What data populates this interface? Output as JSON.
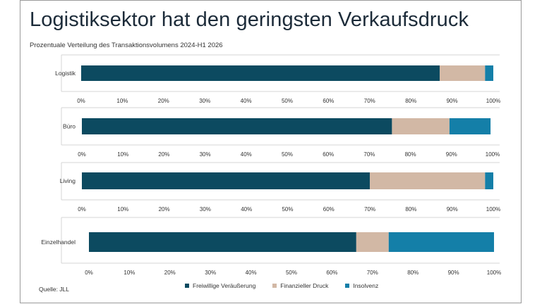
{
  "title": "Logistiksektor hat den geringsten Verkaufsdruck",
  "subtitle": "Prozentuale Verteilung des Transaktionsvolumens 2024-H1 2026",
  "source": "Quelle: JLL",
  "colors": {
    "Freiwillige Veräußerung": "#0c4a60",
    "Finanzieller Druck": "#d2b8a5",
    "Insolvenz": "#147fa8"
  },
  "legend": [
    "Freiwillige Veräußerung",
    "Finanzieller Druck",
    "Insolvenz"
  ],
  "chart_data": [
    {
      "type": "bar",
      "orientation": "horizontal",
      "stacked": true,
      "categories": [
        "Logistik"
      ],
      "series": [
        {
          "name": "Freiwillige Veräußerung",
          "values": [
            87
          ]
        },
        {
          "name": "Finanzieller Druck",
          "values": [
            11
          ]
        },
        {
          "name": "Insolvenz",
          "values": [
            2
          ]
        }
      ],
      "xlim": [
        0,
        100
      ],
      "ticks": [
        "0%",
        "10%",
        "20%",
        "30%",
        "40%",
        "50%",
        "60%",
        "70%",
        "80%",
        "90%",
        "100%"
      ]
    },
    {
      "type": "bar",
      "orientation": "horizontal",
      "stacked": true,
      "categories": [
        "Büro"
      ],
      "series": [
        {
          "name": "Freiwillige Veräußerung",
          "values": [
            75.5
          ]
        },
        {
          "name": "Finanzieller Druck",
          "values": [
            14
          ]
        },
        {
          "name": "Insolvenz",
          "values": [
            10
          ]
        }
      ],
      "xlim": [
        0,
        100
      ],
      "ticks": [
        "0%",
        "10%",
        "20%",
        "30%",
        "40%",
        "50%",
        "60%",
        "70%",
        "80%",
        "90%",
        "100%"
      ]
    },
    {
      "type": "bar",
      "orientation": "horizontal",
      "stacked": true,
      "categories": [
        "Living"
      ],
      "series": [
        {
          "name": "Freiwillige Veräußerung",
          "values": [
            70
          ]
        },
        {
          "name": "Finanzieller Druck",
          "values": [
            28
          ]
        },
        {
          "name": "Insolvenz",
          "values": [
            2
          ]
        }
      ],
      "xlim": [
        0,
        100
      ],
      "ticks": [
        "0%",
        "10%",
        "20%",
        "30%",
        "40%",
        "50%",
        "60%",
        "70%",
        "80%",
        "90%",
        "100%"
      ]
    },
    {
      "type": "bar",
      "orientation": "horizontal",
      "stacked": true,
      "categories": [
        "Einzelhandel"
      ],
      "series": [
        {
          "name": "Freiwillige Veräußerung",
          "values": [
            66
          ]
        },
        {
          "name": "Finanzieller Druck",
          "values": [
            8
          ]
        },
        {
          "name": "Insolvenz",
          "values": [
            26
          ]
        }
      ],
      "xlim": [
        0,
        100
      ],
      "ticks": [
        "0%",
        "10%",
        "20%",
        "30%",
        "40%",
        "50%",
        "60%",
        "70%",
        "80%",
        "90%",
        "100%"
      ]
    }
  ]
}
